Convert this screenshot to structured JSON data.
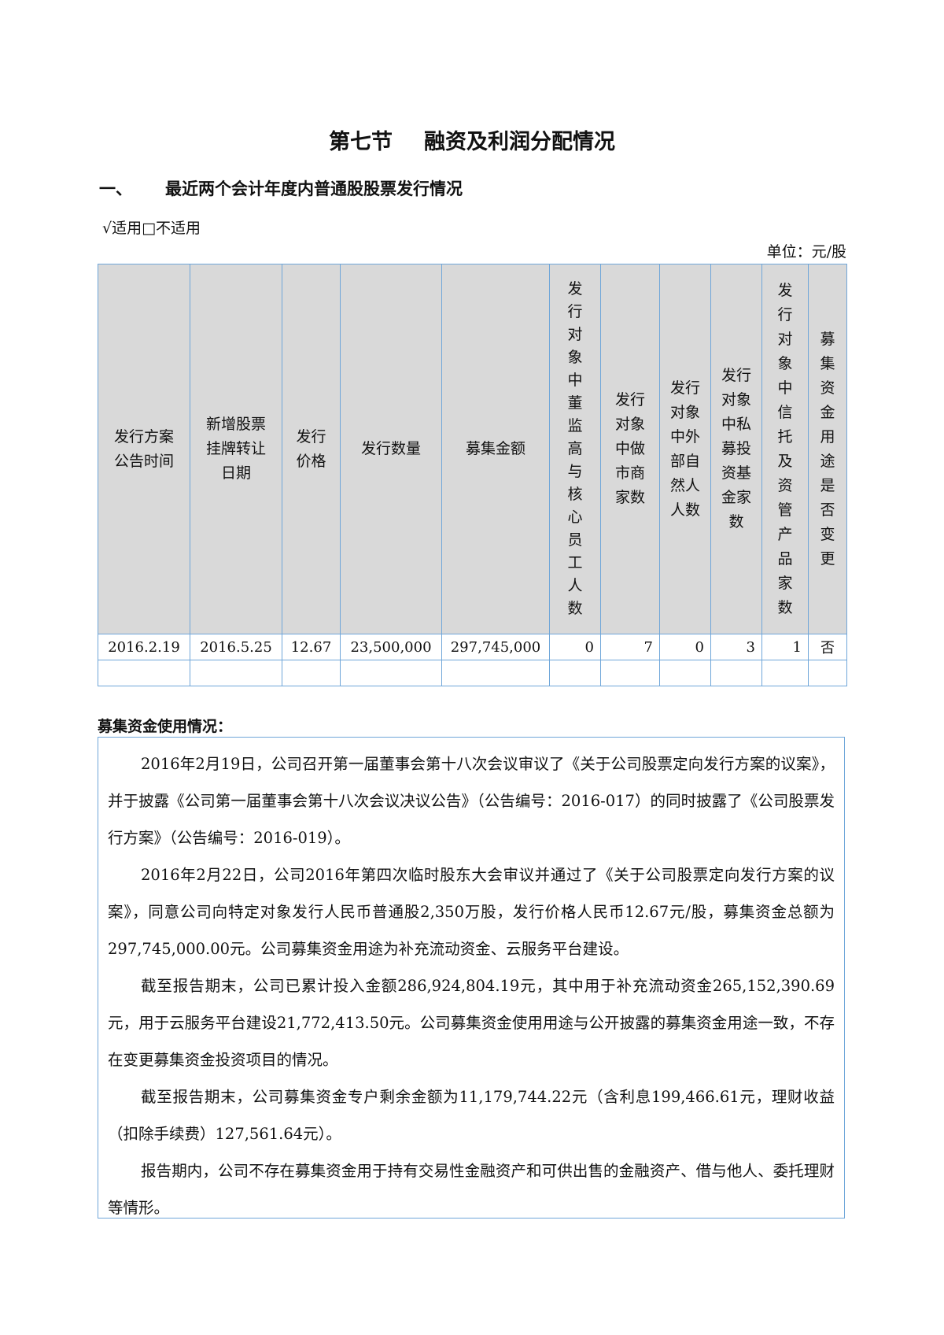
{
  "title": {
    "part1": "第七节",
    "part2": "融资及利润分配情况"
  },
  "section": {
    "number": "一、",
    "heading": "最近两个会计年度内普通股股票发行情况"
  },
  "applicability": "√适用□不适用",
  "unit": "单位：元/股",
  "table": {
    "headers": [
      "发行方案公告时间",
      "新增股票挂牌转让日期",
      "发行价格",
      "发行数量",
      "募集金额",
      "发行对象中董监高与核心员工人数",
      "发行对象中做市商家数",
      "发行对象中外部自然人人数",
      "发行对象中私募投资基金家数",
      "发行对象中信托及资管产品家数",
      "募集资金用途是否变更"
    ],
    "rows": [
      [
        "2016.2.19",
        "2016.5.25",
        "12.67",
        "23,500,000",
        "297,745,000",
        "0",
        "7",
        "0",
        "3",
        "1",
        "否"
      ],
      [
        "",
        "",
        "",
        "",
        "",
        "",
        "",
        "",
        "",
        "",
        ""
      ]
    ]
  },
  "usage": {
    "title": "募集资金使用情况：",
    "paragraphs": [
      "2016年2月19日，公司召开第一届董事会第十八次会议审议了《关于公司股票定向发行方案的议案》，并于披露《公司第一届董事会第十八次会议决议公告》（公告编号：2016-017）的同时披露了《公司股票发行方案》（公告编号：2016-019）。",
      "2016年2月22日，公司2016年第四次临时股东大会审议并通过了《关于公司股票定向发行方案的议案》，同意公司向特定对象发行人民币普通股2,350万股，发行价格人民币12.67元/股，募集资金总额为297,745,000.00元。公司募集资金用途为补充流动资金、云服务平台建设。",
      "截至报告期末，公司已累计投入金额286,924,804.19元，其中用于补充流动资金265,152,390.69元，用于云服务平台建设21,772,413.50元。公司募集资金使用用途与公开披露的募集资金用途一致，不存在变更募集资金投资项目的情况。",
      "截至报告期末，公司募集资金专户剩余金额为11,179,744.22元（含利息199,466.61元，理财收益（扣除手续费）127,561.64元）。",
      "报告期内，公司不存在募集资金用于持有交易性金融资产和可供出售的金融资产、借与他人、委托理财等情形。"
    ]
  },
  "colors": {
    "table_border": "#6fa6d9",
    "header_bg": "#d9d9d9"
  }
}
